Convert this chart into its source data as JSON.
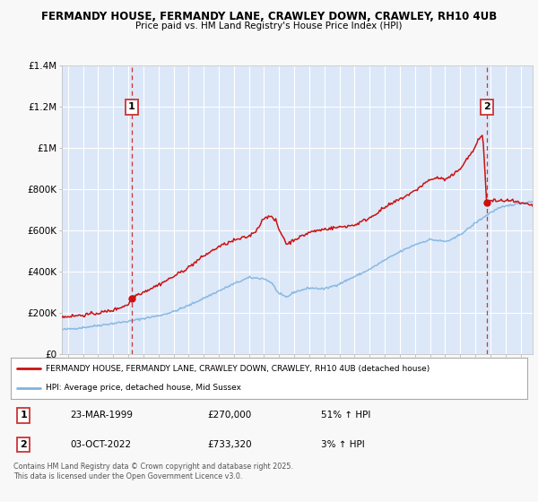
{
  "title1": "FERMANDY HOUSE, FERMANDY LANE, CRAWLEY DOWN, CRAWLEY, RH10 4UB",
  "title2": "Price paid vs. HM Land Registry's House Price Index (HPI)",
  "ylim": [
    0,
    1400000
  ],
  "xlim_start": 1994.6,
  "xlim_end": 2025.8,
  "outer_bg": "#f8f8f8",
  "plot_bg_color": "#dce8f8",
  "grid_color": "#ffffff",
  "hpi_color": "#7fb3e0",
  "price_color": "#cc1111",
  "vline_color": "#cc3333",
  "marker1_date": 1999.22,
  "marker1_price": 270000,
  "marker2_date": 2022.75,
  "marker2_price": 733320,
  "vline1_x": 1999.22,
  "vline2_x": 2022.75,
  "legend_line1": "FERMANDY HOUSE, FERMANDY LANE, CRAWLEY DOWN, CRAWLEY, RH10 4UB (detached house)",
  "legend_line2": "HPI: Average price, detached house, Mid Sussex",
  "table_row1": [
    "1",
    "23-MAR-1999",
    "£270,000",
    "51% ↑ HPI"
  ],
  "table_row2": [
    "2",
    "03-OCT-2022",
    "£733,320",
    "3% ↑ HPI"
  ],
  "footnote": "Contains HM Land Registry data © Crown copyright and database right 2025.\nThis data is licensed under the Open Government Licence v3.0.",
  "ytick_labels": [
    "£0",
    "£200K",
    "£400K",
    "£600K",
    "£800K",
    "£1M",
    "£1.2M",
    "£1.4M"
  ],
  "ytick_values": [
    0,
    200000,
    400000,
    600000,
    800000,
    1000000,
    1200000,
    1400000
  ]
}
